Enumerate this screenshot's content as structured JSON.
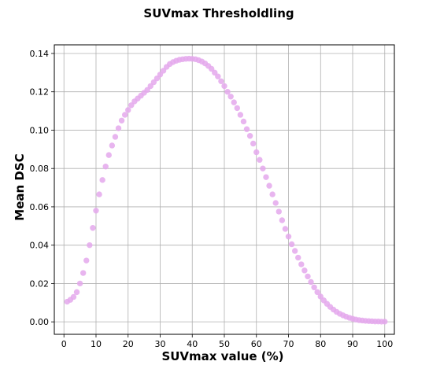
{
  "chart_data": {
    "type": "scatter",
    "title": "SUVmax Thresholdling",
    "xlabel": "SUVmax value (%)",
    "ylabel": "Mean DSC",
    "xlim": [
      -3,
      103
    ],
    "ylim": [
      -0.0065,
      0.1445
    ],
    "xticks": [
      0,
      10,
      20,
      30,
      40,
      50,
      60,
      70,
      80,
      90,
      100
    ],
    "yticks": [
      0.0,
      0.02,
      0.04,
      0.06,
      0.08,
      0.1,
      0.12,
      0.14
    ],
    "ytick_labels": [
      "0.00",
      "0.02",
      "0.04",
      "0.06",
      "0.08",
      "0.10",
      "0.12",
      "0.14"
    ],
    "grid": true,
    "marker_color": "#e4a8ec",
    "series": [
      {
        "x": [
          1,
          2,
          3,
          4,
          5,
          6,
          7,
          8,
          9,
          10,
          11,
          12,
          13,
          14,
          15,
          16,
          17,
          18,
          19,
          20,
          21,
          22,
          23,
          24,
          25,
          26,
          27,
          28,
          29,
          30,
          31,
          32,
          33,
          34,
          35,
          36,
          37,
          38,
          39,
          40,
          41,
          42,
          43,
          44,
          45,
          46,
          47,
          48,
          49,
          50,
          51,
          52,
          53,
          54,
          55,
          56,
          57,
          58,
          59,
          60,
          61,
          62,
          63,
          64,
          65,
          66,
          67,
          68,
          69,
          70,
          71,
          72,
          73,
          74,
          75,
          76,
          77,
          78,
          79,
          80,
          81,
          82,
          83,
          84,
          85,
          86,
          87,
          88,
          89,
          90,
          91,
          92,
          93,
          94,
          95,
          96,
          97,
          98,
          99,
          100
        ],
        "y": [
          0.0105,
          0.0115,
          0.013,
          0.0155,
          0.02,
          0.0255,
          0.032,
          0.04,
          0.049,
          0.058,
          0.0665,
          0.074,
          0.081,
          0.087,
          0.092,
          0.0965,
          0.101,
          0.105,
          0.108,
          0.1105,
          0.113,
          0.115,
          0.1165,
          0.118,
          0.1195,
          0.121,
          0.123,
          0.125,
          0.127,
          0.129,
          0.131,
          0.133,
          0.1345,
          0.1355,
          0.1362,
          0.1367,
          0.137,
          0.1372,
          0.1373,
          0.1372,
          0.137,
          0.1365,
          0.1358,
          0.1348,
          0.1335,
          0.132,
          0.13,
          0.128,
          0.1255,
          0.123,
          0.12,
          0.1175,
          0.1145,
          0.1115,
          0.108,
          0.1045,
          0.1005,
          0.097,
          0.093,
          0.0885,
          0.0845,
          0.08,
          0.0755,
          0.071,
          0.0665,
          0.062,
          0.0575,
          0.053,
          0.0485,
          0.0445,
          0.0405,
          0.037,
          0.0335,
          0.03,
          0.0268,
          0.0237,
          0.0208,
          0.018,
          0.0155,
          0.0132,
          0.0112,
          0.0094,
          0.0078,
          0.0064,
          0.0052,
          0.0042,
          0.0034,
          0.0027,
          0.0021,
          0.0016,
          0.0012,
          0.0009,
          0.0007,
          0.0005,
          0.0004,
          0.0003,
          0.0002,
          0.0002,
          0.0001,
          0.0001
        ]
      }
    ]
  }
}
